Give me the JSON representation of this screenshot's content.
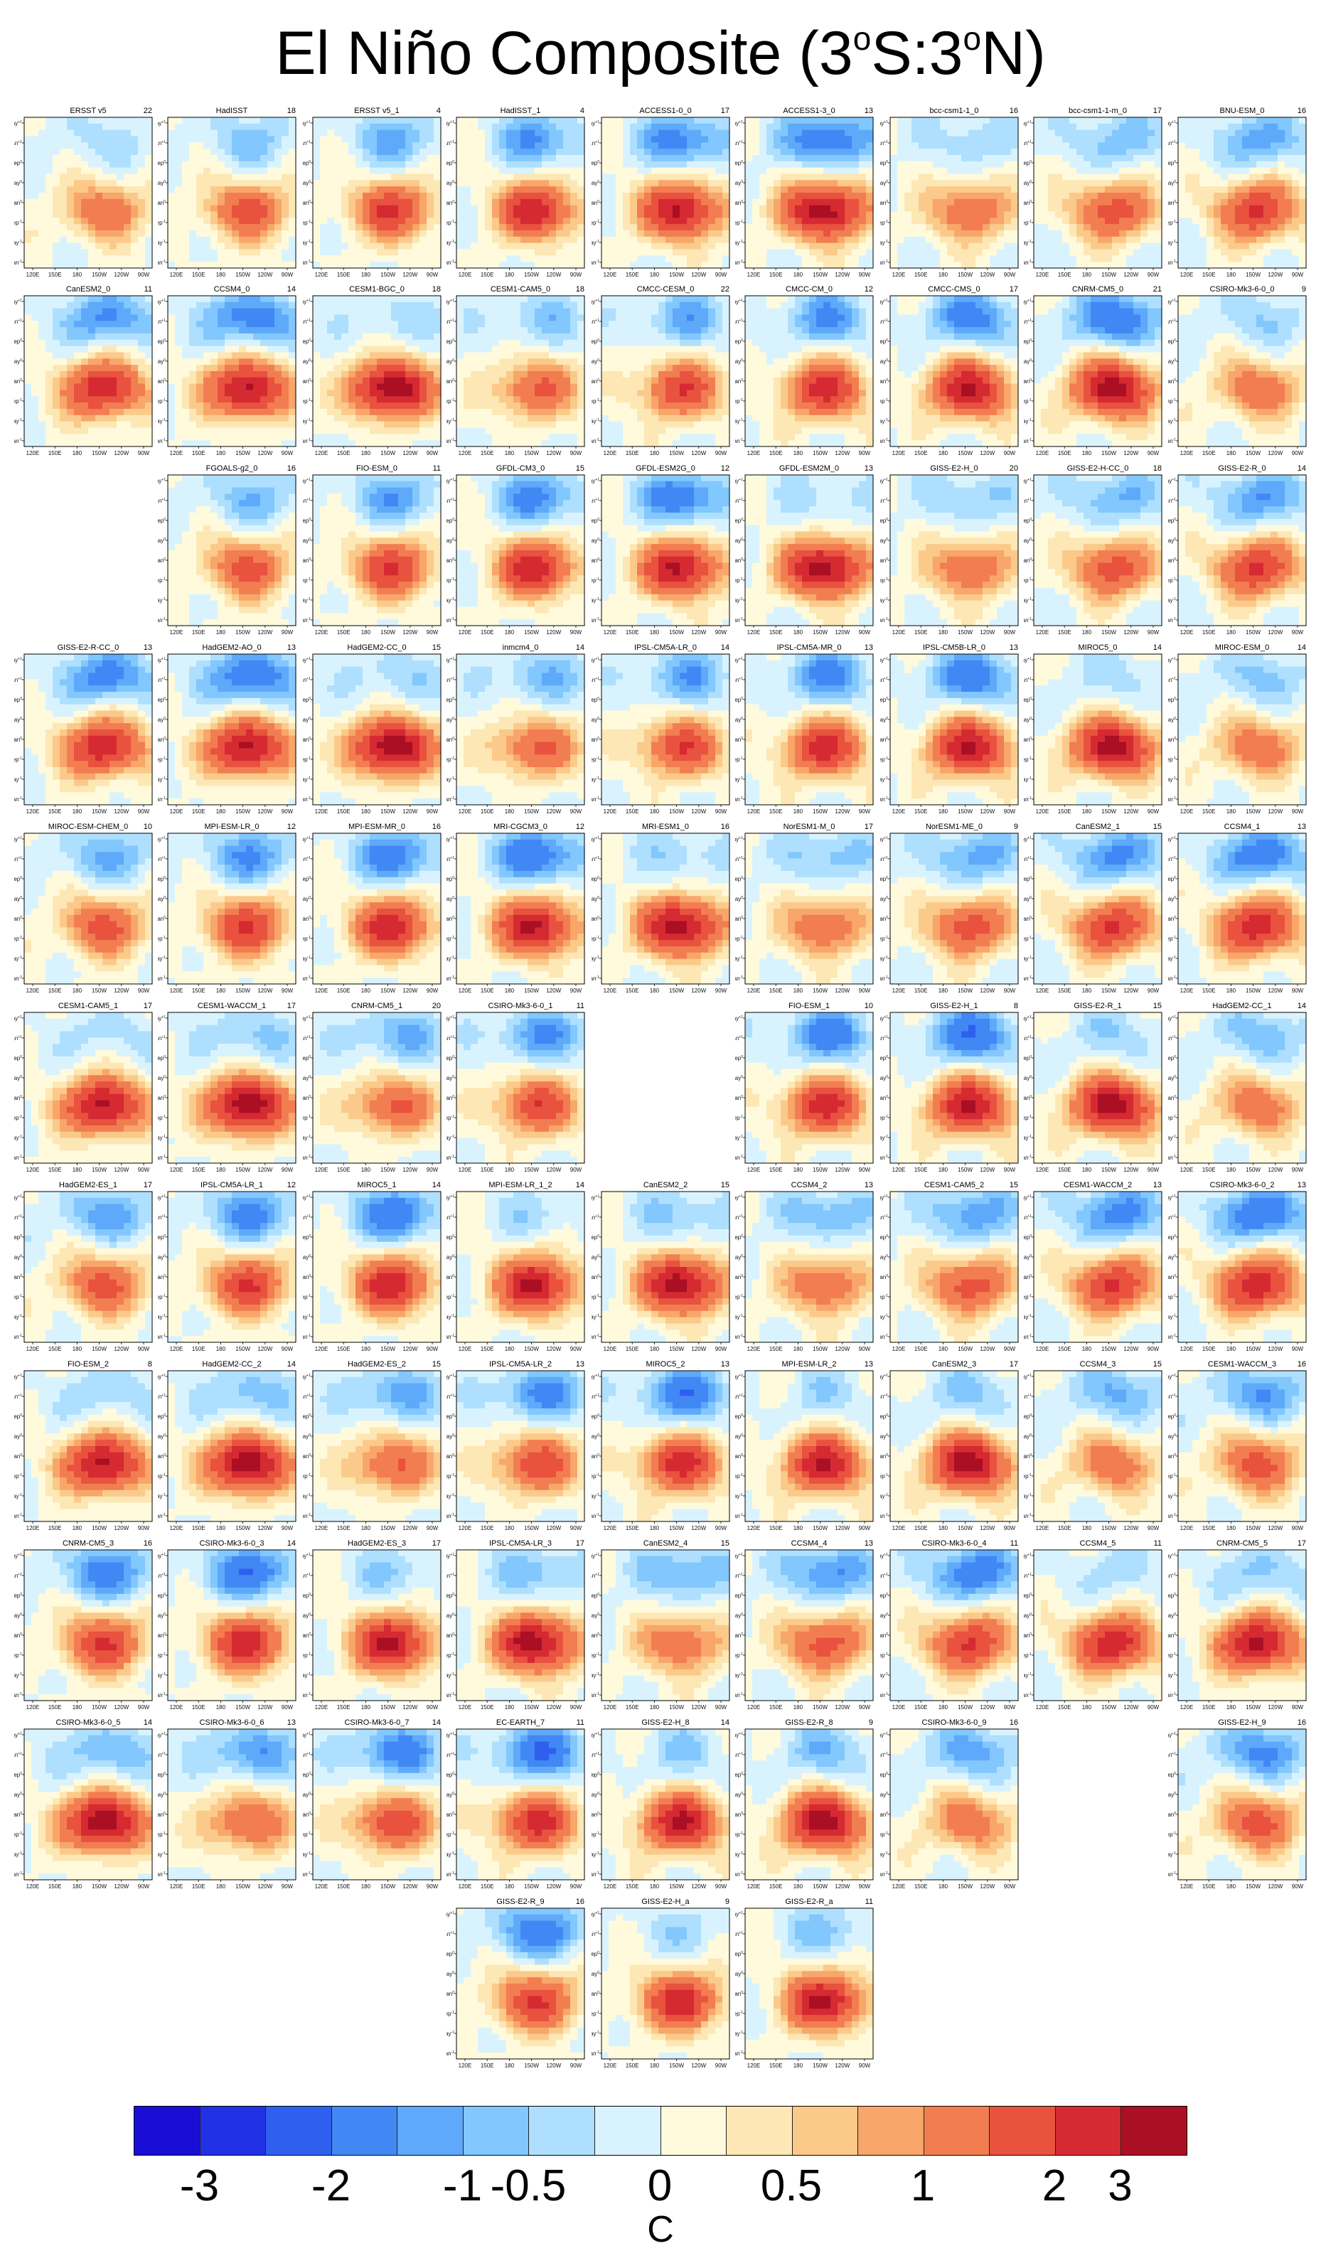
{
  "title": {
    "main": "El Niño Composite (3",
    "lat_s": "S:3",
    "lat_n": "N)",
    "degree": "o"
  },
  "colors": {
    "levels": [
      "#1a0ed6",
      "#2331e6",
      "#2f5fee",
      "#4188f5",
      "#5ea9fa",
      "#82c7fd",
      "#aedffe",
      "#d9f3fe",
      "#fffadc",
      "#fde7b4",
      "#fbca8a",
      "#f8a66a",
      "#f27d51",
      "#e8523e",
      "#d52a31",
      "#aa0f24"
    ],
    "contour": "#333333"
  },
  "colorbar": {
    "labels": [
      "-3",
      "-2",
      "-1",
      "-0.5",
      "0",
      "0.5",
      "1",
      "2",
      "3"
    ],
    "unit": "C"
  },
  "axes": {
    "x_ticks": [
      "120E",
      "150E",
      "180",
      "150W",
      "120W",
      "90W"
    ],
    "y_ticks": [
      "May",
      "Jan",
      "Sep",
      "May",
      "Jan",
      "Sep",
      "May",
      "Jan"
    ],
    "y_superscripts": [
      "+1",
      "+1",
      "0",
      "0",
      "0",
      "-1",
      "-1",
      "-1"
    ]
  },
  "chart_data": {
    "type": "heatmap",
    "title": "El Niño Composite (3°S:3°N)",
    "xlabel": "",
    "ylabel": "",
    "colorbar_levels": [
      -3,
      -2.5,
      -2,
      -1.5,
      -1,
      -0.75,
      -0.5,
      -0.25,
      0,
      0.25,
      0.5,
      0.75,
      1,
      1.5,
      2,
      2.5,
      3
    ],
    "panels": [
      {
        "name": "ERSST v5",
        "count": 22
      },
      {
        "name": "HadISST",
        "count": 18
      },
      {
        "name": "ERSST v5_1",
        "count": 4
      },
      {
        "name": "HadISST_1",
        "count": 4
      },
      {
        "name": "ACCESS1-0_0",
        "count": 17
      },
      {
        "name": "ACCESS1-3_0",
        "count": 13
      },
      {
        "name": "bcc-csm1-1_0",
        "count": 16
      },
      {
        "name": "bcc-csm1-1-m_0",
        "count": 17
      },
      {
        "name": "BNU-ESM_0",
        "count": 16
      },
      {
        "name": "CanESM2_0",
        "count": 11
      },
      {
        "name": "CCSM4_0",
        "count": 14
      },
      {
        "name": "CESM1-BGC_0",
        "count": 18
      },
      {
        "name": "CESM1-CAM5_0",
        "count": 18
      },
      {
        "name": "CMCC-CESM_0",
        "count": 22
      },
      {
        "name": "CMCC-CM_0",
        "count": 12
      },
      {
        "name": "CMCC-CMS_0",
        "count": 17
      },
      {
        "name": "CNRM-CM5_0",
        "count": 21
      },
      {
        "name": "CSIRO-Mk3-6-0_0",
        "count": 9
      },
      {
        "name": "FGOALS-g2_0",
        "count": 16
      },
      {
        "name": "FIO-ESM_0",
        "count": 11
      },
      {
        "name": "GFDL-CM3_0",
        "count": 15
      },
      {
        "name": "GFDL-ESM2G_0",
        "count": 12
      },
      {
        "name": "GFDL-ESM2M_0",
        "count": 13
      },
      {
        "name": "GISS-E2-H_0",
        "count": 20
      },
      {
        "name": "GISS-E2-H-CC_0",
        "count": 18
      },
      {
        "name": "GISS-E2-R_0",
        "count": 14
      },
      {
        "name": "GISS-E2-R-CC_0",
        "count": 13
      },
      {
        "name": "HadGEM2-AO_0",
        "count": 13
      },
      {
        "name": "HadGEM2-CC_0",
        "count": 15
      },
      {
        "name": "inmcm4_0",
        "count": 14
      },
      {
        "name": "IPSL-CM5A-LR_0",
        "count": 14
      },
      {
        "name": "IPSL-CM5A-MR_0",
        "count": 13
      },
      {
        "name": "IPSL-CM5B-LR_0",
        "count": 13
      },
      {
        "name": "MIROC5_0",
        "count": 14
      },
      {
        "name": "MIROC-ESM_0",
        "count": 14
      },
      {
        "name": "MIROC-ESM-CHEM_0",
        "count": 10
      },
      {
        "name": "MPI-ESM-LR_0",
        "count": 12
      },
      {
        "name": "MPI-ESM-MR_0",
        "count": 16
      },
      {
        "name": "MRI-CGCM3_0",
        "count": 12
      },
      {
        "name": "MRI-ESM1_0",
        "count": 16
      },
      {
        "name": "NorESM1-M_0",
        "count": 17
      },
      {
        "name": "NorESM1-ME_0",
        "count": 9
      },
      {
        "name": "CanESM2_1",
        "count": 15
      },
      {
        "name": "CCSM4_1",
        "count": 13
      },
      {
        "name": "CESM1-CAM5_1",
        "count": 17
      },
      {
        "name": "CESM1-WACCM_1",
        "count": 17
      },
      {
        "name": "CNRM-CM5_1",
        "count": 20
      },
      {
        "name": "CSIRO-Mk3-6-0_1",
        "count": 11
      },
      {
        "name": "FIO-ESM_1",
        "count": 10
      },
      {
        "name": "GISS-E2-H_1",
        "count": 8
      },
      {
        "name": "GISS-E2-R_1",
        "count": 15
      },
      {
        "name": "HadGEM2-CC_1",
        "count": 14
      },
      {
        "name": "HadGEM2-ES_1",
        "count": 17
      },
      {
        "name": "IPSL-CM5A-LR_1",
        "count": 12
      },
      {
        "name": "MIROC5_1",
        "count": 14
      },
      {
        "name": "MPI-ESM-LR_1_2",
        "count": 14
      },
      {
        "name": "CanESM2_2",
        "count": 15
      },
      {
        "name": "CCSM4_2",
        "count": 13
      },
      {
        "name": "CESM1-CAM5_2",
        "count": 15
      },
      {
        "name": "CESM1-WACCM_2",
        "count": 13
      },
      {
        "name": "CSIRO-Mk3-6-0_2",
        "count": 13
      },
      {
        "name": "FIO-ESM_2",
        "count": 8
      },
      {
        "name": "HadGEM2-CC_2",
        "count": 14
      },
      {
        "name": "HadGEM2-ES_2",
        "count": 15
      },
      {
        "name": "IPSL-CM5A-LR_2",
        "count": 13
      },
      {
        "name": "MIROC5_2",
        "count": 13
      },
      {
        "name": "MPI-ESM-LR_2",
        "count": 13
      },
      {
        "name": "CanESM2_3",
        "count": 17
      },
      {
        "name": "CCSM4_3",
        "count": 15
      },
      {
        "name": "CESM1-WACCM_3",
        "count": 16
      },
      {
        "name": "CNRM-CM5_3",
        "count": 16
      },
      {
        "name": "CSIRO-Mk3-6-0_3",
        "count": 14
      },
      {
        "name": "HadGEM2-ES_3",
        "count": 17
      },
      {
        "name": "IPSL-CM5A-LR_3",
        "count": 17
      },
      {
        "name": "CanESM2_4",
        "count": 15
      },
      {
        "name": "CCSM4_4",
        "count": 13
      },
      {
        "name": "CSIRO-Mk3-6-0_4",
        "count": 11
      },
      {
        "name": "CCSM4_5",
        "count": 11
      },
      {
        "name": "CNRM-CM5_5",
        "count": 17
      },
      {
        "name": "CSIRO-Mk3-6-0_5",
        "count": 14
      },
      {
        "name": "CSIRO-Mk3-6-0_6",
        "count": 13
      },
      {
        "name": "CSIRO-Mk3-6-0_7",
        "count": 14
      },
      {
        "name": "EC-EARTH_7",
        "count": 11
      },
      {
        "name": "GISS-E2-H_8",
        "count": 14
      },
      {
        "name": "GISS-E2-R_8",
        "count": 9
      },
      {
        "name": "CSIRO-Mk3-6-0_9",
        "count": 16
      },
      {
        "name": "GISS-E2-H_9",
        "count": 16
      },
      {
        "name": "GISS-E2-R_9",
        "count": 16
      },
      {
        "name": "GISS-E2-H_a",
        "count": 9
      },
      {
        "name": "GISS-E2-R_a",
        "count": 11
      }
    ]
  }
}
